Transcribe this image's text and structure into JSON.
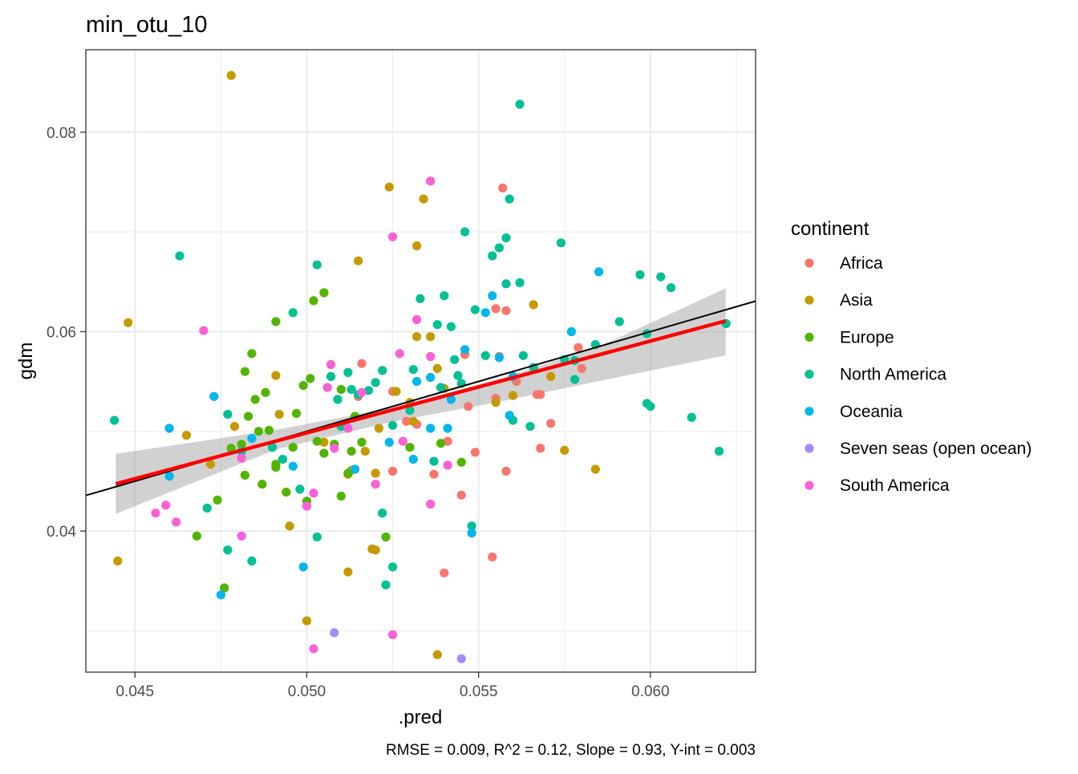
{
  "chart_data": {
    "type": "scatter",
    "title": "min_otu_10",
    "xlabel": ".pred",
    "ylabel": "gdm",
    "caption": "RMSE = 0.009, R^2 = 0.12, Slope = 0.93, Y-int = 0.003",
    "xlim": [
      0.04357,
      0.06306
    ],
    "ylim": [
      0.02585,
      0.08827
    ],
    "x_ticks": [
      0.045,
      0.05,
      0.055,
      0.06
    ],
    "x_tick_labels": [
      "0.045",
      "0.050",
      "0.055",
      "0.060"
    ],
    "y_ticks": [
      0.04,
      0.06,
      0.08
    ],
    "y_tick_labels": [
      "0.04",
      "0.06",
      "0.08"
    ],
    "grid": true,
    "legend": {
      "title": "continent",
      "position": "right",
      "entries": [
        {
          "name": "Africa",
          "color": "#F8766D"
        },
        {
          "name": "Asia",
          "color": "#C49A00"
        },
        {
          "name": "Europe",
          "color": "#53B400"
        },
        {
          "name": "North America",
          "color": "#00C094"
        },
        {
          "name": "Oceania",
          "color": "#00B6EB"
        },
        {
          "name": "Seven seas (open ocean)",
          "color": "#A58AFF"
        },
        {
          "name": "South America",
          "color": "#FB61D7"
        }
      ]
    },
    "identity_line": {
      "color": "#000000",
      "x": [
        0.04357,
        0.06306
      ],
      "y": [
        0.04357,
        0.06306
      ]
    },
    "fit_line": {
      "color": "#FF0000",
      "x": [
        0.04444,
        0.06219
      ],
      "y": [
        0.04473,
        0.06107
      ]
    },
    "confidence_band": {
      "color": "#999999",
      "x": [
        0.04444,
        0.0491,
        0.0525,
        0.0555,
        0.0585,
        0.06219
      ],
      "lower": [
        0.04172,
        0.04817,
        0.05098,
        0.05289,
        0.05504,
        0.05762
      ],
      "upper": [
        0.04774,
        0.05014,
        0.05238,
        0.05516,
        0.05848,
        0.06434
      ]
    },
    "series": [
      {
        "name": "Africa",
        "points": [
          [
            0.0516,
            0.0568
          ],
          [
            0.0525,
            0.054
          ],
          [
            0.0529,
            0.051
          ],
          [
            0.0532,
            0.0507
          ],
          [
            0.0537,
            0.0457
          ],
          [
            0.054,
            0.0358
          ],
          [
            0.0541,
            0.049
          ],
          [
            0.0545,
            0.0436
          ],
          [
            0.0547,
            0.0525
          ],
          [
            0.0549,
            0.0479
          ],
          [
            0.0555,
            0.0623
          ],
          [
            0.0555,
            0.0533
          ],
          [
            0.0556,
            0.0575
          ],
          [
            0.0557,
            0.0744
          ],
          [
            0.0558,
            0.046
          ],
          [
            0.0558,
            0.0621
          ],
          [
            0.0554,
            0.0374
          ],
          [
            0.0561,
            0.055
          ],
          [
            0.0567,
            0.0537
          ],
          [
            0.0568,
            0.0537
          ],
          [
            0.0568,
            0.0483
          ],
          [
            0.0571,
            0.0508
          ],
          [
            0.0579,
            0.0584
          ],
          [
            0.058,
            0.0563
          ],
          [
            0.0515,
            0.0535
          ],
          [
            0.0525,
            0.046
          ],
          [
            0.0546,
            0.0577
          ]
        ]
      },
      {
        "name": "Asia",
        "points": [
          [
            0.0448,
            0.0609
          ],
          [
            0.0445,
            0.037
          ],
          [
            0.0465,
            0.0496
          ],
          [
            0.0472,
            0.0467
          ],
          [
            0.0478,
            0.0857
          ],
          [
            0.0479,
            0.0505
          ],
          [
            0.0491,
            0.0556
          ],
          [
            0.0492,
            0.0517
          ],
          [
            0.0495,
            0.0405
          ],
          [
            0.05,
            0.031
          ],
          [
            0.0505,
            0.0489
          ],
          [
            0.0512,
            0.0359
          ],
          [
            0.0512,
            0.0457
          ],
          [
            0.0515,
            0.0671
          ],
          [
            0.0517,
            0.048
          ],
          [
            0.0519,
            0.0382
          ],
          [
            0.052,
            0.0458
          ],
          [
            0.052,
            0.0381
          ],
          [
            0.0521,
            0.0503
          ],
          [
            0.0524,
            0.0745
          ],
          [
            0.0526,
            0.054
          ],
          [
            0.053,
            0.0529
          ],
          [
            0.0531,
            0.051
          ],
          [
            0.0532,
            0.0686
          ],
          [
            0.0532,
            0.0595
          ],
          [
            0.0534,
            0.0733
          ],
          [
            0.0536,
            0.0595
          ],
          [
            0.0538,
            0.0563
          ],
          [
            0.0538,
            0.0276
          ],
          [
            0.054,
            0.0543
          ],
          [
            0.0555,
            0.0529
          ],
          [
            0.056,
            0.0536
          ],
          [
            0.0566,
            0.0627
          ],
          [
            0.0571,
            0.0555
          ],
          [
            0.0575,
            0.0481
          ],
          [
            0.0584,
            0.0462
          ],
          [
            0.0513,
            0.0461
          ]
        ]
      },
      {
        "name": "Europe",
        "points": [
          [
            0.0468,
            0.0395
          ],
          [
            0.0474,
            0.0431
          ],
          [
            0.0476,
            0.0343
          ],
          [
            0.0478,
            0.0483
          ],
          [
            0.0481,
            0.0487
          ],
          [
            0.0482,
            0.0456
          ],
          [
            0.0482,
            0.056
          ],
          [
            0.0483,
            0.0515
          ],
          [
            0.0484,
            0.0578
          ],
          [
            0.0485,
            0.0532
          ],
          [
            0.0486,
            0.05
          ],
          [
            0.0487,
            0.0447
          ],
          [
            0.0488,
            0.0539
          ],
          [
            0.0489,
            0.0501
          ],
          [
            0.0491,
            0.061
          ],
          [
            0.0491,
            0.0467
          ],
          [
            0.0491,
            0.0464
          ],
          [
            0.0494,
            0.0439
          ],
          [
            0.0496,
            0.0484
          ],
          [
            0.0497,
            0.0518
          ],
          [
            0.0499,
            0.0546
          ],
          [
            0.05,
            0.043
          ],
          [
            0.0501,
            0.0553
          ],
          [
            0.0502,
            0.0631
          ],
          [
            0.0503,
            0.049
          ],
          [
            0.0505,
            0.0639
          ],
          [
            0.0505,
            0.0478
          ],
          [
            0.0508,
            0.0487
          ],
          [
            0.051,
            0.0435
          ],
          [
            0.051,
            0.0542
          ],
          [
            0.0512,
            0.0458
          ],
          [
            0.0513,
            0.048
          ],
          [
            0.0514,
            0.0515
          ],
          [
            0.0516,
            0.0489
          ],
          [
            0.0523,
            0.0394
          ],
          [
            0.053,
            0.0484
          ],
          [
            0.0539,
            0.0488
          ],
          [
            0.0545,
            0.0469
          ]
        ]
      },
      {
        "name": "North America",
        "points": [
          [
            0.0444,
            0.0511
          ],
          [
            0.0463,
            0.0676
          ],
          [
            0.0471,
            0.0423
          ],
          [
            0.0477,
            0.0381
          ],
          [
            0.0477,
            0.0517
          ],
          [
            0.0481,
            0.048
          ],
          [
            0.0484,
            0.037
          ],
          [
            0.049,
            0.0484
          ],
          [
            0.0493,
            0.0472
          ],
          [
            0.0496,
            0.0619
          ],
          [
            0.0498,
            0.0442
          ],
          [
            0.0503,
            0.0667
          ],
          [
            0.0503,
            0.0394
          ],
          [
            0.0507,
            0.0555
          ],
          [
            0.0509,
            0.0532
          ],
          [
            0.051,
            0.0505
          ],
          [
            0.0512,
            0.0559
          ],
          [
            0.0513,
            0.0542
          ],
          [
            0.0515,
            0.0537
          ],
          [
            0.0518,
            0.0541
          ],
          [
            0.052,
            0.0549
          ],
          [
            0.0522,
            0.0561
          ],
          [
            0.0522,
            0.0418
          ],
          [
            0.0523,
            0.0346
          ],
          [
            0.0525,
            0.0364
          ],
          [
            0.0525,
            0.0506
          ],
          [
            0.053,
            0.0521
          ],
          [
            0.0531,
            0.0562
          ],
          [
            0.0533,
            0.0633
          ],
          [
            0.0537,
            0.047
          ],
          [
            0.0538,
            0.0607
          ],
          [
            0.0539,
            0.0544
          ],
          [
            0.054,
            0.0636
          ],
          [
            0.0542,
            0.0605
          ],
          [
            0.0543,
            0.0572
          ],
          [
            0.0544,
            0.0556
          ],
          [
            0.0545,
            0.0548
          ],
          [
            0.0546,
            0.07
          ],
          [
            0.0548,
            0.0405
          ],
          [
            0.0549,
            0.0622
          ],
          [
            0.0552,
            0.0576
          ],
          [
            0.0554,
            0.0676
          ],
          [
            0.0556,
            0.0684
          ],
          [
            0.0558,
            0.0648
          ],
          [
            0.0558,
            0.0694
          ],
          [
            0.0559,
            0.0733
          ],
          [
            0.056,
            0.0511
          ],
          [
            0.0562,
            0.0828
          ],
          [
            0.0562,
            0.0649
          ],
          [
            0.0563,
            0.0576
          ],
          [
            0.0565,
            0.0505
          ],
          [
            0.0566,
            0.0564
          ],
          [
            0.0574,
            0.0689
          ],
          [
            0.0575,
            0.0572
          ],
          [
            0.0578,
            0.0552
          ],
          [
            0.0578,
            0.0571
          ],
          [
            0.0584,
            0.0587
          ],
          [
            0.0591,
            0.061
          ],
          [
            0.0597,
            0.0657
          ],
          [
            0.0599,
            0.0598
          ],
          [
            0.0599,
            0.0528
          ],
          [
            0.06,
            0.0525
          ],
          [
            0.0603,
            0.0655
          ],
          [
            0.0606,
            0.0644
          ],
          [
            0.0612,
            0.0514
          ],
          [
            0.062,
            0.048
          ],
          [
            0.0622,
            0.0608
          ]
        ]
      },
      {
        "name": "Oceania",
        "points": [
          [
            0.046,
            0.0503
          ],
          [
            0.046,
            0.0455
          ],
          [
            0.0473,
            0.0535
          ],
          [
            0.0475,
            0.0336
          ],
          [
            0.0484,
            0.0493
          ],
          [
            0.0496,
            0.0465
          ],
          [
            0.0499,
            0.0364
          ],
          [
            0.0514,
            0.0462
          ],
          [
            0.0524,
            0.0489
          ],
          [
            0.0531,
            0.0472
          ],
          [
            0.0532,
            0.055
          ],
          [
            0.0536,
            0.0554
          ],
          [
            0.0536,
            0.0503
          ],
          [
            0.0541,
            0.0503
          ],
          [
            0.0542,
            0.0532
          ],
          [
            0.0546,
            0.0582
          ],
          [
            0.0548,
            0.0398
          ],
          [
            0.0552,
            0.0619
          ],
          [
            0.0554,
            0.0636
          ],
          [
            0.0556,
            0.0574
          ],
          [
            0.0559,
            0.0516
          ],
          [
            0.056,
            0.0555
          ],
          [
            0.0577,
            0.06
          ],
          [
            0.0585,
            0.066
          ]
        ]
      },
      {
        "name": "Seven seas (open ocean)",
        "points": [
          [
            0.0508,
            0.0298
          ],
          [
            0.0545,
            0.0272
          ]
        ]
      },
      {
        "name": "South America",
        "points": [
          [
            0.0456,
            0.0418
          ],
          [
            0.0459,
            0.0426
          ],
          [
            0.0462,
            0.0409
          ],
          [
            0.047,
            0.0601
          ],
          [
            0.0481,
            0.0395
          ],
          [
            0.0481,
            0.0473
          ],
          [
            0.05,
            0.0425
          ],
          [
            0.0502,
            0.0438
          ],
          [
            0.0502,
            0.0282
          ],
          [
            0.0506,
            0.0544
          ],
          [
            0.0507,
            0.0567
          ],
          [
            0.0508,
            0.0483
          ],
          [
            0.0512,
            0.0503
          ],
          [
            0.0516,
            0.0539
          ],
          [
            0.052,
            0.0447
          ],
          [
            0.0525,
            0.0296
          ],
          [
            0.0525,
            0.0695
          ],
          [
            0.0527,
            0.0578
          ],
          [
            0.0528,
            0.049
          ],
          [
            0.0532,
            0.0612
          ],
          [
            0.0536,
            0.0751
          ],
          [
            0.0536,
            0.0575
          ],
          [
            0.0536,
            0.0427
          ],
          [
            0.0541,
            0.0466
          ]
        ]
      }
    ]
  }
}
